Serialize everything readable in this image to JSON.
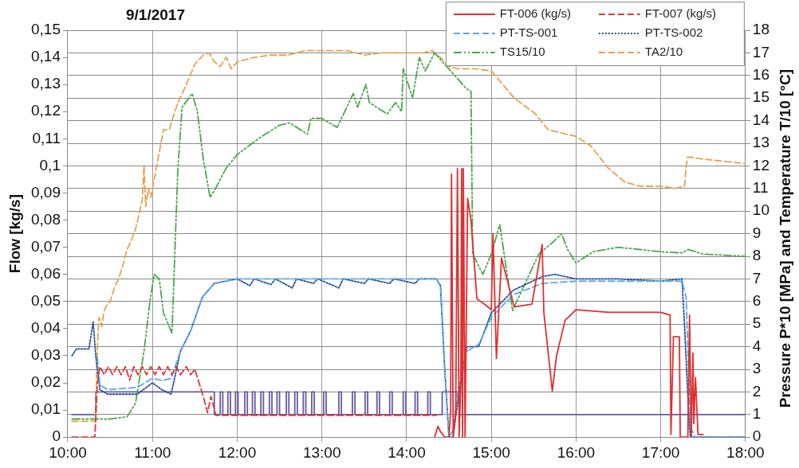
{
  "chart_data": {
    "type": "line",
    "title": "9/1/2017",
    "ylabel": "Flow [kg/s]",
    "y2label": "Pressure P*10 [MPa] and Temperature T/10 [°C]",
    "xlim": [
      10,
      18
    ],
    "xticks": [
      {
        "value": 10,
        "label": "10:00"
      },
      {
        "value": 11,
        "label": "11:00"
      },
      {
        "value": 12,
        "label": "12:00"
      },
      {
        "value": 13,
        "label": "13:00"
      },
      {
        "value": 14,
        "label": "14:00"
      },
      {
        "value": 15,
        "label": "15:00"
      },
      {
        "value": 16,
        "label": "16:00"
      },
      {
        "value": 17,
        "label": "17:00"
      },
      {
        "value": 18,
        "label": "18:00"
      }
    ],
    "ylim": [
      0,
      0.15
    ],
    "yticks": [
      0,
      {
        "value": 0.01,
        "label": "0,01"
      },
      {
        "value": 0.02,
        "label": "0,02"
      },
      {
        "value": 0.03,
        "label": "0,03"
      },
      {
        "value": 0.04,
        "label": "0,04"
      },
      {
        "value": 0.05,
        "label": "0,05"
      },
      {
        "value": 0.06,
        "label": "0,06"
      },
      {
        "value": 0.07,
        "label": "0,07"
      },
      {
        "value": 0.08,
        "label": "0,08"
      },
      {
        "value": 0.09,
        "label": "0,09"
      },
      {
        "value": 0.1,
        "label": "0,1"
      },
      {
        "value": 0.11,
        "label": "0,11"
      },
      {
        "value": 0.12,
        "label": "0,12"
      },
      {
        "value": 0.13,
        "label": "0,13"
      },
      {
        "value": 0.14,
        "label": "0,14"
      },
      {
        "value": 0.15,
        "label": "0,15"
      }
    ],
    "y2lim": [
      0,
      18
    ],
    "y2ticks": [
      0,
      1,
      2,
      3,
      4,
      5,
      6,
      7,
      8,
      9,
      10,
      11,
      12,
      13,
      14,
      15,
      16,
      17,
      18
    ],
    "grid": true,
    "legend": "top right",
    "series": [
      {
        "name": "FT-006 (kg/s)",
        "color": "#e03030",
        "line_style": "solid",
        "x": [
          14.33,
          14.37,
          14.4,
          14.45,
          14.5,
          14.52,
          14.53,
          14.55,
          14.58,
          14.6,
          14.62,
          14.64,
          14.65,
          14.66,
          14.67,
          14.69,
          14.72,
          14.76,
          14.83,
          14.92,
          15.0,
          15.02,
          15.06,
          15.12,
          15.27,
          15.48,
          15.6,
          15.62,
          15.72,
          15.77,
          15.87,
          16.0,
          16.38,
          17.0,
          17.11,
          17.12,
          17.15,
          17.22,
          17.23,
          17.32,
          17.34,
          17.36,
          17.38,
          17.39,
          17.41,
          17.44,
          17.5
        ],
        "values": [
          0,
          0.004,
          0.002,
          0,
          0,
          0.01,
          0.097,
          0,
          0.01,
          0.099,
          0,
          0.02,
          0.099,
          0,
          0.099,
          0,
          0.088,
          0.08,
          0.051,
          0.049,
          0.047,
          0.075,
          0.029,
          0.066,
          0.048,
          0.049,
          0.071,
          0.046,
          0.017,
          0.03,
          0.043,
          0.047,
          0.046,
          0.046,
          0.045,
          0.001,
          0.037,
          0.037,
          0,
          0,
          0.045,
          0,
          0.031,
          0.005,
          0.022,
          0.001,
          0.001
        ]
      },
      {
        "name": "FT-007 (kg/s)",
        "color": "#d83a3a",
        "line_style": "dashed",
        "x": [
          10.05,
          10.32,
          10.35,
          10.38,
          10.43,
          10.48,
          10.53,
          10.58,
          10.63,
          10.68,
          10.73,
          10.78,
          10.83,
          10.88,
          10.93,
          10.98,
          11.03,
          11.08,
          11.13,
          11.18,
          11.23,
          11.28,
          11.33,
          11.4,
          11.45,
          11.5,
          11.6,
          11.65,
          11.69,
          11.75,
          14.35
        ],
        "values": [
          0,
          0,
          0.02,
          0.026,
          0.023,
          0.026,
          0.023,
          0.026,
          0.023,
          0.026,
          0.021,
          0.026,
          0.023,
          0.026,
          0.023,
          0.026,
          0.023,
          0.026,
          0.023,
          0.026,
          0.023,
          0.026,
          0.023,
          0.026,
          0.023,
          0.025,
          0.015,
          0.009,
          0.015,
          0.008,
          0.008
        ]
      },
      {
        "name": "PT-TS-001",
        "color": "#5aaae6",
        "line_style": "dashed",
        "axis": "y2",
        "x": [
          10.35,
          10.38,
          10.47,
          10.82,
          11.0,
          11.11,
          11.22,
          11.33,
          11.45,
          11.59,
          11.73,
          12.0,
          12.5,
          13.0,
          13.5,
          14.0,
          14.35,
          14.4,
          14.45,
          14.5,
          14.55,
          14.6,
          14.71,
          14.85,
          15.0,
          15.26,
          15.6,
          16.0,
          17.0,
          17.25,
          17.3,
          17.35,
          17.4,
          18.0
        ],
        "values": [
          3.5,
          2.3,
          2.1,
          2.2,
          2.6,
          2.5,
          2.6,
          3.8,
          4.7,
          6.2,
          6.8,
          7.0,
          7.0,
          7.0,
          7.0,
          7.0,
          7.0,
          6.7,
          3.0,
          0,
          0.3,
          2.0,
          3.8,
          4.1,
          5.3,
          6.3,
          6.8,
          6.9,
          6.9,
          6.9,
          6.2,
          0.5,
          0,
          0
        ]
      },
      {
        "name": "PT-TS-002",
        "color": "#2a4fa0",
        "line_style": "dotted",
        "axis": "y2",
        "x": [
          10.05,
          10.1,
          10.25,
          10.3,
          10.33,
          10.38,
          10.47,
          10.82,
          11.0,
          11.11,
          11.22,
          11.33,
          11.45,
          11.59,
          11.73,
          12.0,
          12.15,
          12.2,
          12.4,
          12.45,
          12.65,
          12.7,
          12.9,
          12.95,
          13.2,
          13.25,
          13.5,
          13.55,
          13.8,
          13.85,
          14.1,
          14.15,
          14.35,
          14.4,
          14.45,
          14.5,
          14.55,
          14.6,
          14.71,
          14.85,
          15.0,
          15.26,
          15.6,
          15.75,
          16.0,
          16.5,
          17.0,
          17.25,
          17.28,
          17.33,
          17.35,
          18.0
        ],
        "values": [
          3.6,
          3.9,
          3.9,
          5.1,
          3.6,
          2.1,
          1.9,
          1.9,
          2.4,
          2.1,
          1.9,
          3.8,
          4.7,
          6.2,
          6.8,
          7.0,
          6.7,
          7.0,
          6.75,
          7.0,
          6.6,
          7.0,
          6.8,
          7.0,
          6.6,
          7.0,
          6.8,
          7.0,
          6.8,
          7.0,
          6.8,
          7.0,
          7.0,
          6.7,
          3.0,
          0,
          0,
          1.5,
          4.0,
          4.0,
          5.5,
          6.5,
          7.1,
          7.2,
          7.0,
          7.0,
          6.9,
          7.0,
          5.0,
          1.0,
          0,
          0
        ]
      },
      {
        "name": "TS15/10",
        "color": "#4aa84a",
        "line_style": "dashdot",
        "axis": "y2",
        "x": [
          10.05,
          10.5,
          10.7,
          10.8,
          10.9,
          10.97,
          11.02,
          11.08,
          11.13,
          11.23,
          11.3,
          11.35,
          11.47,
          11.53,
          11.6,
          11.68,
          11.73,
          11.87,
          12.0,
          12.25,
          12.5,
          12.62,
          12.83,
          12.87,
          13.0,
          13.18,
          13.37,
          13.42,
          13.52,
          13.56,
          13.77,
          13.87,
          13.94,
          13.96,
          14.07,
          14.15,
          14.22,
          14.33,
          14.4,
          14.71,
          14.76,
          14.78,
          14.9,
          15.0,
          15.1,
          15.25,
          15.56,
          15.72,
          15.83,
          15.9,
          16.0,
          16.2,
          16.5,
          17.0,
          17.25,
          17.32,
          17.5,
          18.0
        ],
        "values": [
          0.8,
          0.8,
          0.9,
          1.5,
          3.8,
          6.0,
          7.2,
          7.0,
          5.5,
          4.6,
          11.9,
          14.6,
          15.2,
          14.4,
          12.3,
          10.6,
          10.9,
          11.9,
          12.5,
          13.2,
          13.8,
          13.9,
          13.4,
          14.1,
          14.1,
          13.7,
          15.2,
          14.6,
          15.6,
          14.8,
          14.3,
          14.8,
          14.4,
          16.3,
          15.0,
          16.8,
          16.2,
          17.0,
          16.7,
          15.4,
          15.3,
          8.1,
          7.2,
          8.1,
          9.4,
          5.6,
          8.1,
          8.6,
          9.0,
          8.3,
          7.7,
          8.2,
          8.4,
          8.2,
          8.15,
          8.3,
          8.1,
          8.0
        ]
      },
      {
        "name": "TA2/10",
        "color": "#e8a050",
        "line_style": "dashed",
        "axis": "y2",
        "x": [
          10.05,
          10.33,
          10.34,
          10.36,
          10.37,
          10.4,
          10.43,
          10.47,
          10.5,
          10.55,
          10.6,
          10.65,
          10.7,
          10.75,
          10.8,
          10.85,
          10.88,
          10.9,
          10.92,
          10.95,
          10.98,
          11.0,
          11.05,
          11.1,
          11.13,
          11.2,
          11.23,
          11.3,
          11.4,
          11.5,
          11.6,
          11.67,
          11.73,
          11.8,
          11.87,
          11.93,
          12.0,
          12.2,
          12.4,
          12.6,
          12.8,
          13.0,
          13.3,
          13.5,
          13.7,
          14.0,
          14.2,
          14.3,
          14.4,
          14.5,
          14.6,
          14.8,
          15.0,
          15.27,
          15.52,
          15.67,
          16.0,
          16.17,
          16.38,
          16.57,
          16.75,
          17.0,
          17.17,
          17.28,
          17.3,
          17.32,
          17.5,
          18.0
        ],
        "values": [
          0.7,
          0.7,
          3.0,
          4.8,
          5.3,
          4.9,
          5.6,
          5.9,
          6.0,
          6.6,
          7.0,
          7.6,
          8.3,
          8.7,
          9.2,
          10.0,
          10.5,
          12.0,
          10.2,
          11.0,
          10.6,
          11.0,
          12.0,
          13.0,
          13.6,
          13.6,
          14.0,
          14.8,
          15.6,
          16.5,
          16.9,
          17.0,
          16.6,
          16.4,
          16.8,
          16.3,
          16.6,
          16.8,
          16.9,
          16.9,
          17.1,
          17.1,
          17.1,
          16.9,
          17.0,
          17.0,
          17.0,
          17.1,
          16.8,
          16.4,
          16.3,
          16.3,
          16.2,
          15.0,
          14.3,
          13.6,
          13.3,
          12.9,
          11.9,
          11.3,
          11.1,
          11.1,
          11.0,
          11.1,
          12.0,
          12.4,
          12.3,
          12.1
        ]
      },
      {
        "color": "#6a5aa0",
        "line_style": "solid",
        "axis": "y2",
        "x": [
          10.05,
          10.33,
          10.33,
          11.73,
          11.73,
          11.8,
          11.8,
          11.83,
          11.83,
          11.89,
          11.89,
          11.92,
          11.92,
          11.98,
          11.98,
          12.01,
          12.01,
          12.09,
          12.09,
          12.12,
          12.12,
          12.18,
          12.18,
          12.21,
          12.21,
          12.28,
          12.28,
          12.31,
          12.31,
          12.38,
          12.38,
          12.41,
          12.41,
          12.47,
          12.47,
          12.5,
          12.5,
          12.58,
          12.58,
          12.61,
          12.61,
          12.68,
          12.68,
          12.71,
          12.71,
          12.78,
          12.78,
          12.81,
          12.81,
          12.88,
          12.88,
          12.91,
          12.91,
          13.02,
          13.02,
          13.05,
          13.05,
          13.2,
          13.2,
          13.23,
          13.23,
          13.36,
          13.36,
          13.39,
          13.39,
          13.51,
          13.51,
          13.54,
          13.54,
          13.65,
          13.65,
          13.68,
          13.68,
          13.8,
          13.8,
          13.83,
          13.83,
          13.96,
          13.96,
          13.99,
          13.99,
          14.1,
          14.1,
          14.13,
          14.13,
          14.25,
          14.25,
          14.28,
          14.28,
          14.42,
          14.42,
          14.62,
          14.62,
          18.0
        ],
        "values": [
          1,
          1,
          2,
          2,
          1,
          1,
          2,
          2,
          1,
          1,
          2,
          2,
          1,
          1,
          2,
          2,
          1,
          1,
          2,
          2,
          1,
          1,
          2,
          2,
          1,
          1,
          2,
          2,
          1,
          1,
          2,
          2,
          1,
          1,
          2,
          2,
          1,
          1,
          2,
          2,
          1,
          1,
          2,
          2,
          1,
          1,
          2,
          2,
          1,
          1,
          2,
          2,
          1,
          1,
          2,
          2,
          1,
          1,
          2,
          2,
          1,
          1,
          2,
          2,
          1,
          1,
          2,
          2,
          1,
          1,
          2,
          2,
          1,
          1,
          2,
          2,
          1,
          1,
          2,
          2,
          1,
          1,
          2,
          2,
          1,
          1,
          2,
          2,
          1,
          1,
          2,
          2,
          1,
          1
        ]
      }
    ]
  }
}
